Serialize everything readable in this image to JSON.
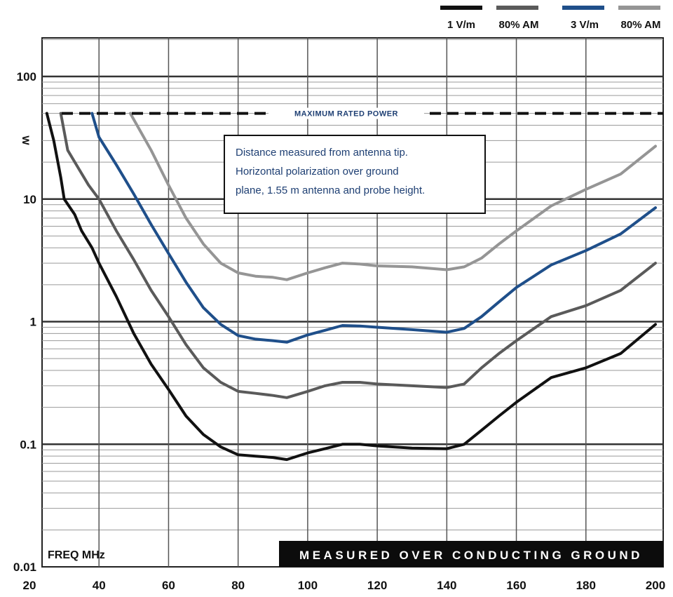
{
  "chart_data": {
    "type": "line",
    "title": "",
    "xlabel": "FREQ MHz",
    "ylabel": "W",
    "x_scale": "linear",
    "y_scale": "log",
    "xlim": [
      20,
      200
    ],
    "ylim": [
      0.01,
      100
    ],
    "x_ticks": [
      "20",
      "40",
      "60",
      "80",
      "100",
      "120",
      "140",
      "160",
      "180",
      "200"
    ],
    "y_ticks": [
      "100",
      "10",
      "1",
      "0.1",
      "0.01"
    ],
    "grid": true,
    "legend_position": "top-right",
    "max_power_label": "MAXIMUM RATED POWER",
    "max_power_value": 50,
    "annotation_lines": [
      "Distance measured from antenna tip.",
      "Horizontal polarization over ground",
      "plane, 1.55 m antenna and probe height."
    ],
    "banner": "MEASURED OVER CONDUCTING GROUND",
    "series": [
      {
        "name": "1 V/m",
        "color": "#111111",
        "points": [
          [
            25,
            50
          ],
          [
            27,
            30
          ],
          [
            29,
            15
          ],
          [
            30,
            10
          ],
          [
            33,
            7.5
          ],
          [
            35,
            5.5
          ],
          [
            38,
            4
          ],
          [
            40,
            3
          ],
          [
            45,
            1.6
          ],
          [
            50,
            0.8
          ],
          [
            55,
            0.45
          ],
          [
            60,
            0.28
          ],
          [
            65,
            0.17
          ],
          [
            70,
            0.12
          ],
          [
            75,
            0.095
          ],
          [
            80,
            0.082
          ],
          [
            85,
            0.08
          ],
          [
            90,
            0.078
          ],
          [
            94,
            0.075
          ],
          [
            100,
            0.085
          ],
          [
            105,
            0.092
          ],
          [
            110,
            0.1
          ],
          [
            115,
            0.1
          ],
          [
            120,
            0.097
          ],
          [
            130,
            0.093
          ],
          [
            140,
            0.092
          ],
          [
            145,
            0.1
          ],
          [
            150,
            0.13
          ],
          [
            155,
            0.17
          ],
          [
            160,
            0.22
          ],
          [
            170,
            0.35
          ],
          [
            180,
            0.42
          ],
          [
            190,
            0.55
          ],
          [
            200,
            0.95
          ]
        ]
      },
      {
        "name": "80% AM",
        "color": "#5a5a5a",
        "points": [
          [
            29,
            50
          ],
          [
            31,
            25
          ],
          [
            34,
            18
          ],
          [
            37,
            13
          ],
          [
            40,
            10
          ],
          [
            45,
            5.5
          ],
          [
            50,
            3.2
          ],
          [
            55,
            1.8
          ],
          [
            60,
            1.1
          ],
          [
            65,
            0.65
          ],
          [
            70,
            0.42
          ],
          [
            75,
            0.32
          ],
          [
            80,
            0.27
          ],
          [
            85,
            0.26
          ],
          [
            90,
            0.25
          ],
          [
            94,
            0.24
          ],
          [
            100,
            0.27
          ],
          [
            105,
            0.3
          ],
          [
            110,
            0.32
          ],
          [
            115,
            0.32
          ],
          [
            120,
            0.31
          ],
          [
            130,
            0.3
          ],
          [
            140,
            0.29
          ],
          [
            145,
            0.31
          ],
          [
            150,
            0.42
          ],
          [
            155,
            0.55
          ],
          [
            160,
            0.7
          ],
          [
            170,
            1.1
          ],
          [
            180,
            1.35
          ],
          [
            190,
            1.8
          ],
          [
            200,
            3
          ]
        ]
      },
      {
        "name": "3 V/m",
        "color": "#1f4f8a",
        "points": [
          [
            38,
            50
          ],
          [
            40,
            32
          ],
          [
            45,
            19
          ],
          [
            50,
            11
          ],
          [
            55,
            6.2
          ],
          [
            60,
            3.6
          ],
          [
            65,
            2.1
          ],
          [
            70,
            1.3
          ],
          [
            75,
            0.95
          ],
          [
            80,
            0.77
          ],
          [
            85,
            0.72
          ],
          [
            90,
            0.7
          ],
          [
            94,
            0.68
          ],
          [
            100,
            0.78
          ],
          [
            105,
            0.85
          ],
          [
            110,
            0.93
          ],
          [
            115,
            0.92
          ],
          [
            120,
            0.9
          ],
          [
            130,
            0.86
          ],
          [
            140,
            0.82
          ],
          [
            145,
            0.88
          ],
          [
            150,
            1.1
          ],
          [
            155,
            1.45
          ],
          [
            160,
            1.9
          ],
          [
            170,
            2.9
          ],
          [
            180,
            3.8
          ],
          [
            190,
            5.2
          ],
          [
            200,
            8.5
          ]
        ]
      },
      {
        "name": "80% AM",
        "color": "#959595",
        "points": [
          [
            49,
            50
          ],
          [
            55,
            25
          ],
          [
            60,
            13
          ],
          [
            65,
            7
          ],
          [
            70,
            4.3
          ],
          [
            75,
            3
          ],
          [
            80,
            2.5
          ],
          [
            85,
            2.35
          ],
          [
            90,
            2.3
          ],
          [
            94,
            2.2
          ],
          [
            100,
            2.5
          ],
          [
            105,
            2.75
          ],
          [
            110,
            3
          ],
          [
            115,
            2.95
          ],
          [
            120,
            2.85
          ],
          [
            130,
            2.8
          ],
          [
            140,
            2.65
          ],
          [
            145,
            2.8
          ],
          [
            150,
            3.3
          ],
          [
            155,
            4.3
          ],
          [
            160,
            5.5
          ],
          [
            170,
            8.8
          ],
          [
            180,
            12
          ],
          [
            190,
            16
          ],
          [
            200,
            27
          ]
        ]
      }
    ]
  }
}
